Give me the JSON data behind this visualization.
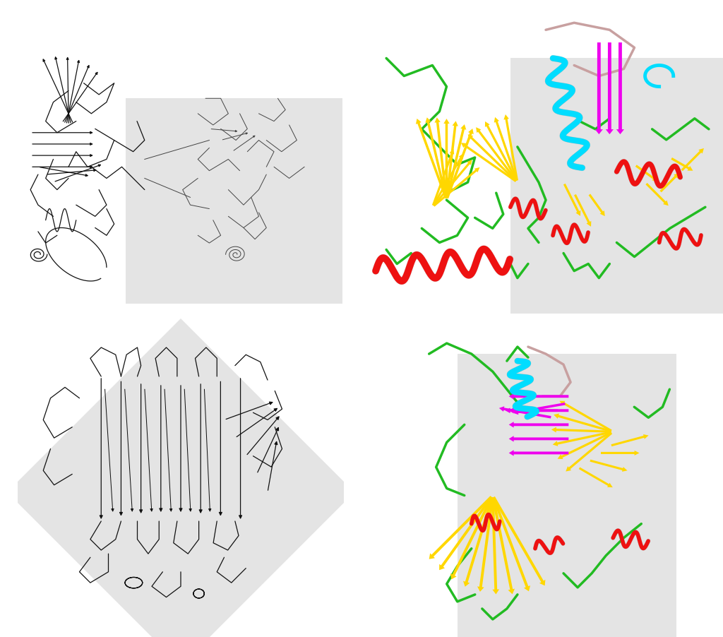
{
  "background_color": "#ffffff",
  "colors": {
    "yellow": "#FFD700",
    "red": "#EE1111",
    "green": "#22BB22",
    "cyan": "#00DDFF",
    "magenta": "#EE00EE",
    "brown_pink": "#C8A0A0",
    "black": "#111111",
    "dark_gray": "#444444",
    "mid_gray": "#888888",
    "gray_bg": "#E0E0E0",
    "white": "#FFFFFF"
  },
  "layout": {
    "fig_width": 10.24,
    "fig_height": 9.02,
    "dpi": 100
  }
}
